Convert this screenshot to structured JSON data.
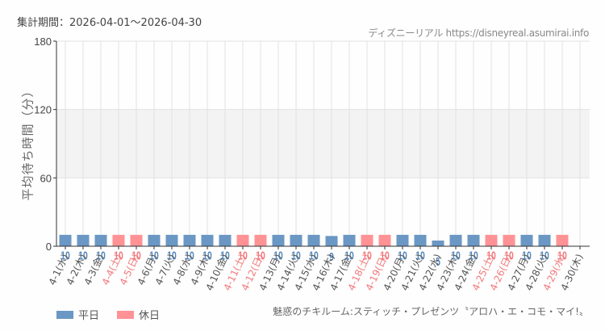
{
  "header": {
    "period_label": "集計期間：2026-04-01～2026-04-30",
    "credit": "ディズニーリアル https://disneyreal.asumirai.info"
  },
  "footer": {
    "attraction_name": "魅惑のチキルーム:スティッチ・プレゼンツ〝アロハ・エ・コモ・マイ!〟"
  },
  "legend": {
    "weekday_label": "平日",
    "holiday_label": "休日"
  },
  "colors": {
    "weekday": "#6b97c4",
    "holiday": "#ff9295",
    "weekday_text": "#5686bb",
    "holiday_text": "#f3797d",
    "axis": "#333333",
    "grid": "#e2e2e2",
    "band": "#f3f3f3"
  },
  "chart_data": {
    "type": "bar",
    "title": "",
    "xlabel": "",
    "ylabel": "平均待ち時間（分）",
    "ylim": [
      0,
      180
    ],
    "yticks": [
      0,
      60,
      120,
      180
    ],
    "highlight_band": [
      60,
      120
    ],
    "grid": true,
    "legend_position": "bottom-left",
    "categories": [
      "4-1(水)",
      "4-2(木)",
      "4-3(金)",
      "4-4(土)",
      "4-5(日)",
      "4-6(月)",
      "4-7(火)",
      "4-8(水)",
      "4-9(木)",
      "4-10(金)",
      "4-11(土)",
      "4-12(日)",
      "4-13(月)",
      "4-14(火)",
      "4-15(水)",
      "4-16(木)",
      "4-17(金)",
      "4-18(土)",
      "4-19(日)",
      "4-20(月)",
      "4-21(火)",
      "4-22(水)",
      "4-23(木)",
      "4-24(金)",
      "4-25(土)",
      "4-26(日)",
      "4-27(月)",
      "4-28(火)",
      "4-29(水)",
      "4-30(木)"
    ],
    "values": [
      10,
      10,
      10,
      10,
      10,
      10,
      10,
      10,
      10,
      10,
      10,
      10,
      10,
      10,
      10,
      9,
      10,
      10,
      10,
      10,
      10,
      5,
      10,
      10,
      10,
      10,
      10,
      10,
      10,
      null
    ],
    "day_type": [
      "weekday",
      "weekday",
      "weekday",
      "holiday",
      "holiday",
      "weekday",
      "weekday",
      "weekday",
      "weekday",
      "weekday",
      "holiday",
      "holiday",
      "weekday",
      "weekday",
      "weekday",
      "weekday",
      "weekday",
      "holiday",
      "holiday",
      "weekday",
      "weekday",
      "weekday",
      "weekday",
      "weekday",
      "holiday",
      "holiday",
      "weekday",
      "weekday",
      "holiday",
      "weekday"
    ],
    "series": [
      {
        "name": "平日",
        "color": "#6b97c4"
      },
      {
        "name": "休日",
        "color": "#ff9295"
      }
    ]
  }
}
